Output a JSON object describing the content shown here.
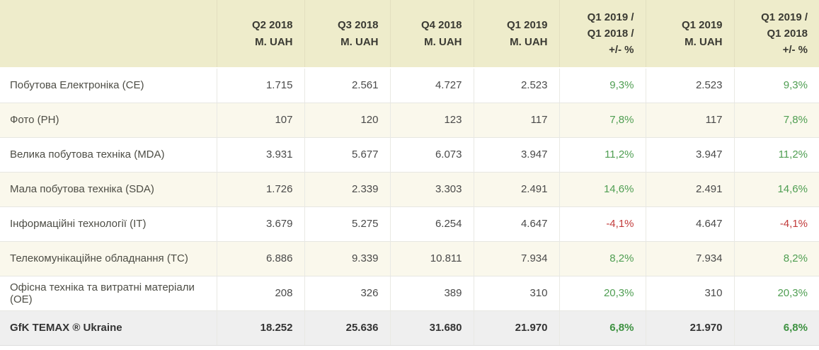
{
  "table": {
    "headers": [
      "",
      "Q2 2018\nM. UAH",
      "Q3 2018\nM. UAH",
      "Q4 2018\nM. UAH",
      "Q1 2019\nM. UAH",
      "Q1 2019 /\nQ1 2018 /\n+/- %",
      "Q1 2019\nM. UAH",
      "Q1 2019 /\nQ1 2018\n+/- %"
    ],
    "rows": [
      {
        "label": "Побутова Електроніка (CE)",
        "cells": [
          "1.715",
          "2.561",
          "4.727",
          "2.523",
          "9,3%",
          "2.523",
          "9,3%"
        ],
        "trend": "positive",
        "is_total": false
      },
      {
        "label": "Фото (PH)",
        "cells": [
          "107",
          "120",
          "123",
          "117",
          "7,8%",
          "117",
          "7,8%"
        ],
        "trend": "positive",
        "is_total": false
      },
      {
        "label": "Велика побутова техніка (MDA)",
        "cells": [
          "3.931",
          "5.677",
          "6.073",
          "3.947",
          "11,2%",
          "3.947",
          "11,2%"
        ],
        "trend": "positive",
        "is_total": false
      },
      {
        "label": "Мала побутова техніка (SDA)",
        "cells": [
          "1.726",
          "2.339",
          "3.303",
          "2.491",
          "14,6%",
          "2.491",
          "14,6%"
        ],
        "trend": "positive",
        "is_total": false
      },
      {
        "label": "Інформаційні технології (IT)",
        "cells": [
          "3.679",
          "5.275",
          "6.254",
          "4.647",
          "-4,1%",
          "4.647",
          "-4,1%"
        ],
        "trend": "negative",
        "is_total": false
      },
      {
        "label": "Телекомунікаційне обладнання (TC)",
        "cells": [
          "6.886",
          "9.339",
          "10.811",
          "7.934",
          "8,2%",
          "7.934",
          "8,2%"
        ],
        "trend": "positive",
        "is_total": false
      },
      {
        "label": "Офісна техніка та витратні матеріали (OE)",
        "cells": [
          "208",
          "326",
          "389",
          "310",
          "20,3%",
          "310",
          "20,3%"
        ],
        "trend": "positive",
        "is_total": false
      },
      {
        "label": "GfK TEMAX ® Ukraine",
        "cells": [
          "18.252",
          "25.636",
          "31.680",
          "21.970",
          "6,8%",
          "21.970",
          "6,8%"
        ],
        "trend": "positive",
        "is_total": true
      }
    ],
    "percent_column_indices": [
      4,
      6
    ]
  },
  "colors": {
    "header_background": "#eeeccb",
    "row_alternate_background": "#faf8ec",
    "total_row_background": "#efefef",
    "positive_change": "#4f9e52",
    "negative_change": "#c23b3b"
  },
  "chart_data": {
    "type": "table",
    "columns": [
      "",
      "Q2 2018 M. UAH",
      "Q3 2018 M. UAH",
      "Q4 2018 M. UAH",
      "Q1 2019 M. UAH",
      "Q1 2019 / Q1 2018 / +/- %",
      "Q1 2019 M. UAH",
      "Q1 2019 / Q1 2018 +/- %"
    ],
    "rows": [
      [
        "Побутова Електроніка (CE)",
        1715,
        2561,
        4727,
        2523,
        "9,3%",
        2523,
        "9,3%"
      ],
      [
        "Фото (PH)",
        107,
        120,
        123,
        117,
        "7,8%",
        117,
        "7,8%"
      ],
      [
        "Велика побутова техніка (MDA)",
        3931,
        5677,
        6073,
        3947,
        "11,2%",
        3947,
        "11,2%"
      ],
      [
        "Мала побутова техніка (SDA)",
        1726,
        2339,
        3303,
        2491,
        "14,6%",
        2491,
        "14,6%"
      ],
      [
        "Інформаційні технології (IT)",
        3679,
        5275,
        6254,
        4647,
        "-4,1%",
        4647,
        "-4,1%"
      ],
      [
        "Телекомунікаційне обладнання (TC)",
        6886,
        9339,
        10811,
        7934,
        "8,2%",
        7934,
        "8,2%"
      ],
      [
        "Офісна техніка та витратні матеріали (OE)",
        208,
        326,
        389,
        310,
        "20,3%",
        310,
        "20,3%"
      ],
      [
        "GfK TEMAX ® Ukraine",
        18252,
        25636,
        31680,
        21970,
        "6,8%",
        21970,
        "6,8%"
      ]
    ]
  }
}
